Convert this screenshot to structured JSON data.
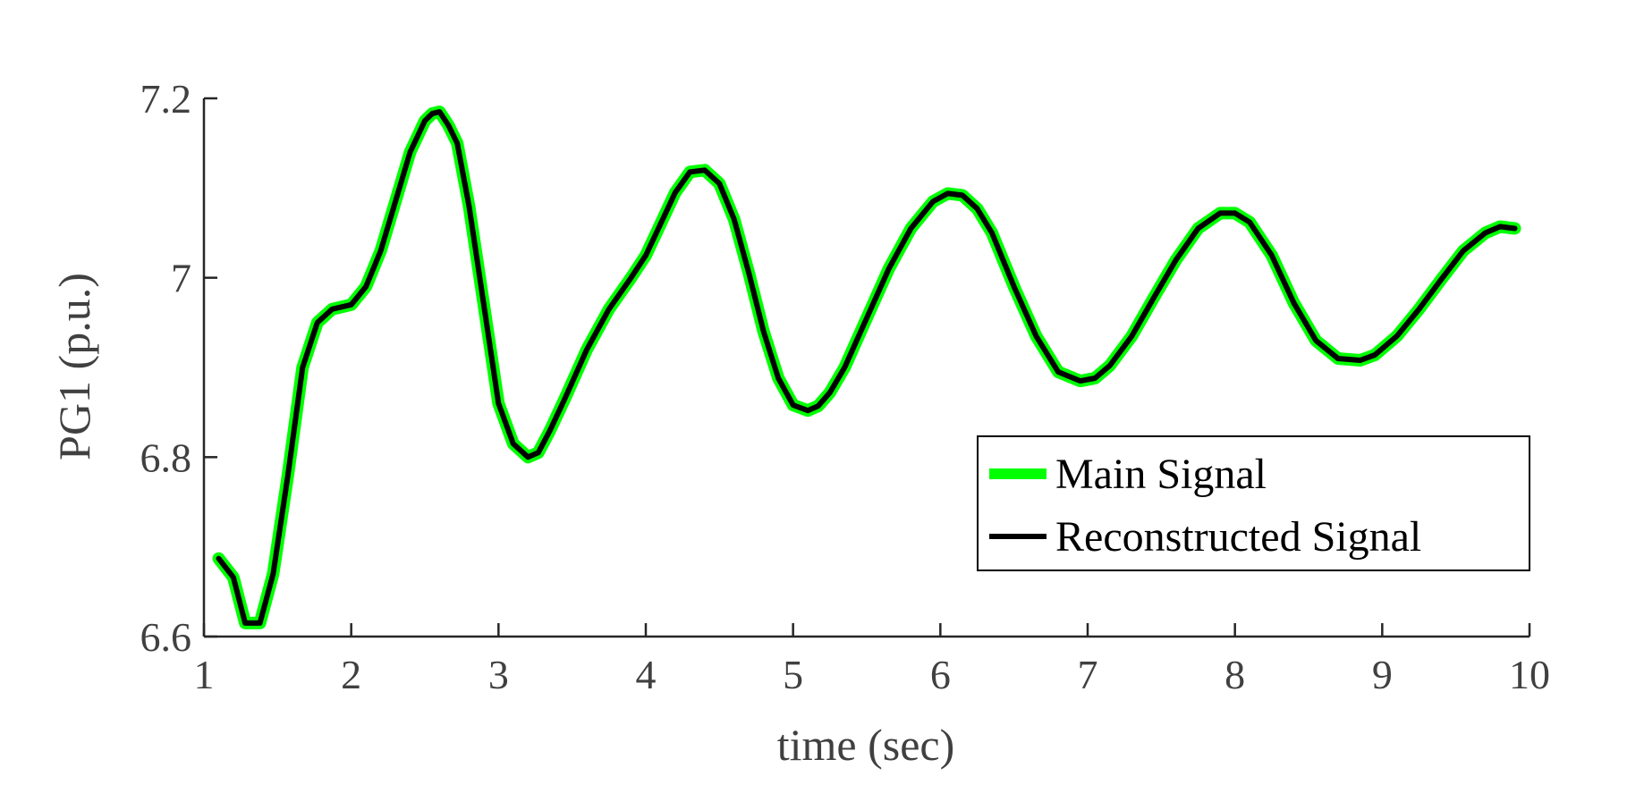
{
  "chart_data": {
    "type": "line",
    "xlabel": "time (sec)",
    "ylabel": "PG1 (p.u.)",
    "xlim": [
      1,
      10
    ],
    "ylim": [
      6.6,
      7.2
    ],
    "xticks": [
      1,
      2,
      3,
      4,
      5,
      6,
      7,
      8,
      9,
      10
    ],
    "yticks": [
      6.6,
      6.8,
      7.0,
      7.2
    ],
    "xtick_labels": [
      "1",
      "2",
      "3",
      "4",
      "5",
      "6",
      "7",
      "8",
      "9",
      "10"
    ],
    "ytick_labels": [
      "6.6",
      "6.8",
      "7",
      "7.2"
    ],
    "grid": false,
    "legend_position": "lower-right",
    "x": [
      1.1,
      1.2,
      1.28,
      1.38,
      1.47,
      1.57,
      1.67,
      1.77,
      1.87,
      2.0,
      2.1,
      2.2,
      2.3,
      2.4,
      2.5,
      2.55,
      2.6,
      2.66,
      2.72,
      2.8,
      2.9,
      3.0,
      3.1,
      3.2,
      3.27,
      3.35,
      3.45,
      3.6,
      3.75,
      3.9,
      4.0,
      4.1,
      4.2,
      4.3,
      4.4,
      4.5,
      4.6,
      4.7,
      4.8,
      4.9,
      5.0,
      5.1,
      5.17,
      5.25,
      5.35,
      5.5,
      5.65,
      5.8,
      5.95,
      6.05,
      6.15,
      6.25,
      6.35,
      6.5,
      6.65,
      6.8,
      6.95,
      7.05,
      7.15,
      7.3,
      7.45,
      7.6,
      7.75,
      7.9,
      8.0,
      8.1,
      8.25,
      8.4,
      8.55,
      8.7,
      8.85,
      8.95,
      9.1,
      9.25,
      9.4,
      9.55,
      9.7,
      9.8,
      9.9
    ],
    "series": [
      {
        "name": "Main Signal",
        "color": "#00ff00",
        "values": [
          6.687,
          6.666,
          6.615,
          6.615,
          6.67,
          6.78,
          6.9,
          6.95,
          6.965,
          6.97,
          6.99,
          7.03,
          7.085,
          7.14,
          7.175,
          7.183,
          7.185,
          7.17,
          7.15,
          7.08,
          6.97,
          6.86,
          6.815,
          6.8,
          6.805,
          6.83,
          6.865,
          6.92,
          6.965,
          7.0,
          7.025,
          7.06,
          7.095,
          7.118,
          7.12,
          7.105,
          7.065,
          7.005,
          6.94,
          6.888,
          6.858,
          6.852,
          6.857,
          6.872,
          6.9,
          6.955,
          7.01,
          7.055,
          7.085,
          7.094,
          7.092,
          7.077,
          7.05,
          6.99,
          6.935,
          6.895,
          6.885,
          6.888,
          6.902,
          6.935,
          6.978,
          7.02,
          7.055,
          7.072,
          7.072,
          7.062,
          7.025,
          6.972,
          6.93,
          6.91,
          6.908,
          6.914,
          6.935,
          6.965,
          6.998,
          7.03,
          7.05,
          7.057,
          7.055
        ]
      },
      {
        "name": "Reconstructed Signal",
        "color": "#000000",
        "values": [
          6.687,
          6.666,
          6.615,
          6.615,
          6.67,
          6.78,
          6.9,
          6.95,
          6.965,
          6.97,
          6.99,
          7.03,
          7.085,
          7.14,
          7.175,
          7.183,
          7.185,
          7.17,
          7.15,
          7.08,
          6.97,
          6.86,
          6.815,
          6.8,
          6.805,
          6.83,
          6.865,
          6.92,
          6.965,
          7.0,
          7.025,
          7.06,
          7.095,
          7.118,
          7.12,
          7.105,
          7.065,
          7.005,
          6.94,
          6.888,
          6.858,
          6.852,
          6.857,
          6.872,
          6.9,
          6.955,
          7.01,
          7.055,
          7.085,
          7.094,
          7.092,
          7.077,
          7.05,
          6.99,
          6.935,
          6.895,
          6.885,
          6.888,
          6.902,
          6.935,
          6.978,
          7.02,
          7.055,
          7.072,
          7.072,
          7.062,
          7.025,
          6.972,
          6.93,
          6.91,
          6.908,
          6.914,
          6.935,
          6.965,
          6.998,
          7.03,
          7.05,
          7.057,
          7.055
        ]
      }
    ],
    "colors": {
      "axis": "#262626",
      "tick_text": "#404040",
      "legend_border": "#000000"
    }
  }
}
